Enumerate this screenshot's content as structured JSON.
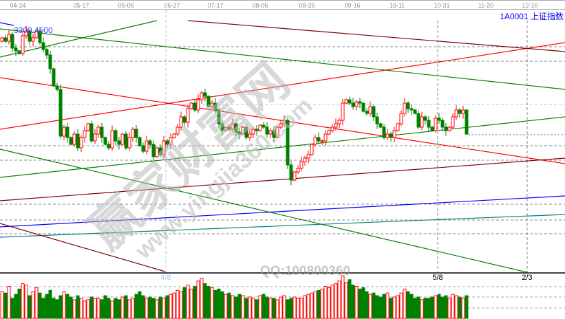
{
  "header": {
    "dates": [
      "04-24",
      "05-17",
      "06-06",
      "06-27",
      "07-17",
      "08-06",
      "08-26",
      "09-16",
      "10-11",
      "10-31",
      "11-20",
      "12-10"
    ],
    "symbol_title": "1A0001  上证指数"
  },
  "price_label": "3300.4500",
  "bottom_labels": [
    {
      "text": "4/8",
      "color": "#a8c8ec"
    },
    {
      "text": "5/8",
      "color": "#000000"
    },
    {
      "text": "2/3",
      "color": "#000000"
    }
  ],
  "watermark": {
    "brand": "赢家财富网",
    "url": "www.yingjia360.com",
    "qq": "QQ:100800360"
  },
  "colors": {
    "up": "#ff0000",
    "down": "#008000",
    "blue": "#0000ff",
    "teal": "#008080",
    "darkred": "#800000"
  },
  "chart_data": {
    "type": "candlestick",
    "ylim": [
      2610,
      3370
    ],
    "first_open": 3280,
    "closes": [
      3290,
      3280,
      3300,
      3260,
      3252,
      3244,
      3296,
      3310,
      3280,
      3290,
      3310,
      3276,
      3256,
      3240,
      3200,
      3150,
      3140,
      3004,
      3030,
      3000,
      2980,
      3010,
      2970,
      3000,
      3020,
      3040,
      2990,
      3010,
      3030,
      3000,
      2980,
      2970,
      3020,
      2990,
      2980,
      3010,
      2970,
      3000,
      3024,
      3000,
      2976,
      2960,
      2990,
      2980,
      2944,
      2970,
      2950,
      2990,
      2980,
      3000,
      3010,
      3030,
      3060,
      3044,
      3084,
      3100,
      3080,
      3110,
      3130,
      3120,
      3090,
      3100,
      3080,
      3040,
      3020,
      3030,
      3024,
      3040,
      3016,
      3010,
      3030,
      3000,
      3010,
      3024,
      3020,
      3036,
      3030,
      3010,
      3020,
      3000,
      3030,
      3040,
      3050,
      2920,
      2876,
      2900,
      2910,
      2930,
      2940,
      2950,
      2980,
      3000,
      2990,
      2990,
      3010,
      3020,
      3030,
      3040,
      3050,
      3100,
      3110,
      3100,
      3090,
      3104,
      3100,
      3076,
      3070,
      3090,
      3060,
      3040,
      3030,
      3000,
      3010,
      3000,
      3020,
      3040,
      3070,
      3100,
      3084,
      3080,
      3070,
      3030,
      3060,
      3050,
      3030,
      3020,
      3056,
      3050,
      3030,
      3020,
      3030,
      3060,
      3080,
      3070,
      3080,
      3010
    ],
    "volume": [
      40,
      38,
      48,
      30,
      36,
      44,
      52,
      50,
      34,
      40,
      46,
      38,
      30,
      36,
      42,
      30,
      28,
      34,
      40,
      36,
      32,
      28,
      34,
      30,
      26,
      28,
      32,
      30,
      30,
      28,
      34,
      30,
      26,
      30,
      28,
      32,
      34,
      28,
      30,
      36,
      40,
      34,
      30,
      32,
      30,
      28,
      32,
      30,
      34,
      36,
      38,
      42,
      40,
      46,
      50,
      44,
      48,
      56,
      60,
      52,
      48,
      46,
      42,
      44,
      40,
      36,
      38,
      34,
      32,
      36,
      34,
      30,
      32,
      30,
      28,
      34,
      36,
      32,
      30,
      30,
      28,
      32,
      34,
      28,
      30,
      32,
      30,
      30,
      34,
      36,
      38,
      40,
      42,
      44,
      48,
      46,
      50,
      52,
      56,
      64,
      54,
      58,
      50,
      48,
      44,
      46,
      40,
      36,
      38,
      34,
      32,
      36,
      38,
      30,
      32,
      34,
      38,
      44,
      40,
      36,
      30,
      32,
      28,
      30,
      30,
      32,
      34,
      36,
      32,
      34,
      30,
      36,
      34,
      32,
      30,
      34
    ],
    "trend_lines": [
      {
        "color": "#008000",
        "from": [
          -0.6,
          3234
        ],
        "to": [
          45,
          3340
        ]
      },
      {
        "color": "#008000",
        "from": [
          -0.6,
          3316
        ],
        "to": [
          163.6,
          3140
        ]
      },
      {
        "color": "#ff0000",
        "from": [
          -0.6,
          3174
        ],
        "to": [
          163.6,
          2924
        ]
      },
      {
        "color": "#ff0000",
        "from": [
          -0.6,
          3024
        ],
        "to": [
          163.6,
          3276
        ]
      },
      {
        "color": "#008000",
        "from": [
          -0.6,
          2884
        ],
        "to": [
          163.6,
          3060
        ]
      },
      {
        "color": "#008000",
        "from": [
          -0.6,
          2966
        ],
        "to": [
          153.4,
          2606
        ]
      },
      {
        "color": "#800000",
        "from": [
          54,
          3340
        ],
        "to": [
          163.6,
          3250
        ]
      },
      {
        "color": "#800000",
        "from": [
          -0.6,
          2816
        ],
        "to": [
          163.6,
          2940
        ]
      },
      {
        "color": "#0000ff",
        "from": [
          -0.6,
          2740
        ],
        "to": [
          163.6,
          2830
        ]
      },
      {
        "color": "#008080",
        "from": [
          -0.6,
          2710
        ],
        "to": [
          163.6,
          2776
        ]
      },
      {
        "color": "#800000",
        "from": [
          -0.6,
          2750
        ],
        "to": [
          47.4,
          2610
        ]
      },
      {
        "color": "#0000ff",
        "from": [
          -0.6,
          3334
        ],
        "to": [
          3.4,
          3326
        ]
      }
    ]
  }
}
